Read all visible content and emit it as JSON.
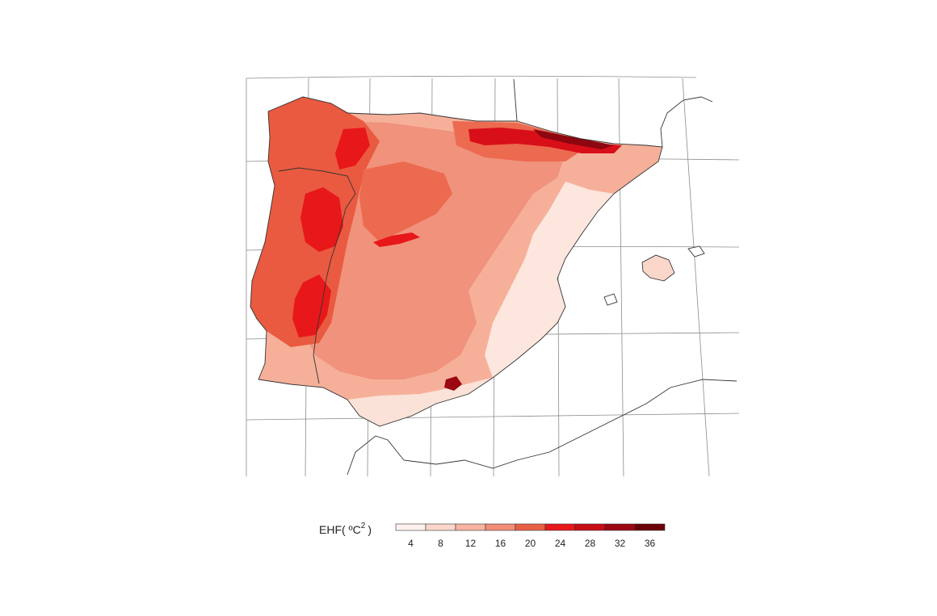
{
  "map": {
    "variable_label": "EHF( ºC",
    "variable_exp": "2",
    "variable_close": ")",
    "legend": {
      "ticks": [
        "4",
        "8",
        "12",
        "16",
        "20",
        "24",
        "28",
        "32",
        "36"
      ],
      "colors": [
        "#fff2ee",
        "#fcd6cb",
        "#f8b4a1",
        "#f28d76",
        "#e95f45",
        "#e8171a",
        "#c70d16",
        "#9b0812",
        "#6b0209"
      ]
    },
    "gradient_colors": {
      "light": "#fbe4dc",
      "mid": "#f2927e",
      "strong": "#e95a40",
      "hot": "#e8171a",
      "extreme": "#8d0610"
    }
  }
}
